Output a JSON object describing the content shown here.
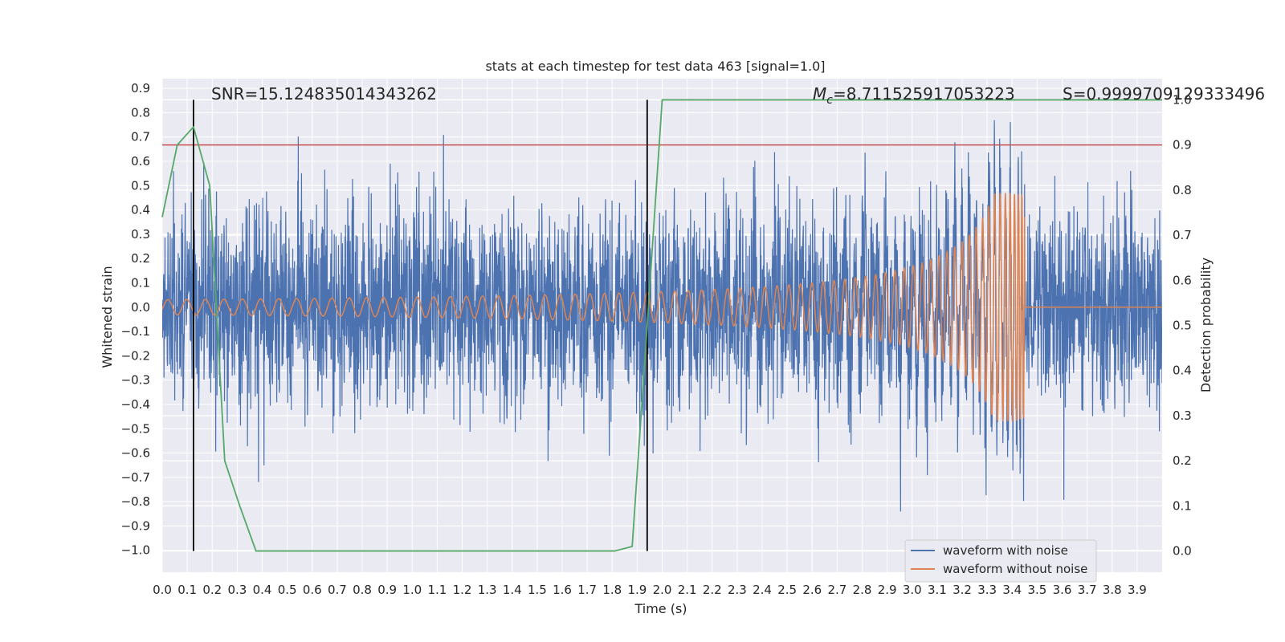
{
  "chart_data": {
    "type": "line",
    "title": "stats at each timestep for test data 463 [signal=1.0]",
    "xlabel": "Time (s)",
    "ylabel": "Whitened strain",
    "y2label": "Detection probability",
    "xlim": [
      0.0,
      4.0
    ],
    "ylim": [
      -1.09,
      0.94
    ],
    "y2lim": [
      -0.047,
      1.047
    ],
    "x_ticks": [
      "0.0",
      "0.1",
      "0.2",
      "0.3",
      "0.4",
      "0.5",
      "0.6",
      "0.7",
      "0.8",
      "0.9",
      "1.0",
      "1.1",
      "1.2",
      "1.3",
      "1.4",
      "1.5",
      "1.6",
      "1.7",
      "1.8",
      "1.9",
      "2.0",
      "2.1",
      "2.2",
      "2.3",
      "2.4",
      "2.5",
      "2.6",
      "2.7",
      "2.8",
      "2.9",
      "3.0",
      "3.1",
      "3.2",
      "3.3",
      "3.4",
      "3.5",
      "3.6",
      "3.7",
      "3.8",
      "3.9"
    ],
    "y_ticks": [
      "0.9",
      "0.8",
      "0.7",
      "0.6",
      "0.5",
      "0.4",
      "0.3",
      "0.2",
      "0.1",
      "0.0",
      "−0.1",
      "−0.2",
      "−0.3",
      "−0.4",
      "−0.5",
      "−0.6",
      "−0.7",
      "−0.8",
      "−0.9",
      "−1.0"
    ],
    "y2_ticks": [
      "1.0",
      "0.9",
      "0.8",
      "0.7",
      "0.6",
      "0.5",
      "0.4",
      "0.3",
      "0.2",
      "0.1",
      "0.0"
    ],
    "grid": true,
    "legend_placement": "lower-right",
    "series": [
      {
        "name": "waveform with noise",
        "axis": "left",
        "color": "#4c72b0",
        "kind": "noise",
        "approx_amplitude": 0.2
      },
      {
        "name": "waveform without noise",
        "axis": "left",
        "color": "#dd8452",
        "kind": "chirp",
        "start_amplitude": 0.03,
        "merger_time": 3.45,
        "peak_amplitude": 0.47
      },
      {
        "name": "",
        "axis": "right",
        "color": "#55a868",
        "x": [
          0.0,
          0.06,
          0.125,
          0.19,
          0.25,
          0.31,
          0.375,
          0.44,
          0.5,
          1.0,
          1.5,
          1.81,
          1.88,
          1.94,
          2.0,
          2.5,
          3.0,
          3.5,
          4.0
        ],
        "y": [
          0.74,
          0.9,
          0.94,
          0.81,
          0.2,
          0.1,
          0.0,
          0.0,
          0.0,
          0.0,
          0.0,
          0.0,
          0.01,
          0.5,
          1.0,
          1.0,
          1.0,
          1.0,
          1.0
        ]
      }
    ],
    "hlines": [
      {
        "axis": "right",
        "y": 0.9,
        "color": "#c44e52"
      }
    ],
    "vlines": [
      {
        "x": 0.125,
        "color": "#000000"
      },
      {
        "x": 1.94,
        "color": "#000000"
      }
    ],
    "annotations": {
      "snr": "SNR=15.124835014343262",
      "mc_symbol": "M",
      "mc_sub": "c",
      "mc_value": "=8.711525917053223",
      "s": "S=0.9999709129333496"
    }
  }
}
